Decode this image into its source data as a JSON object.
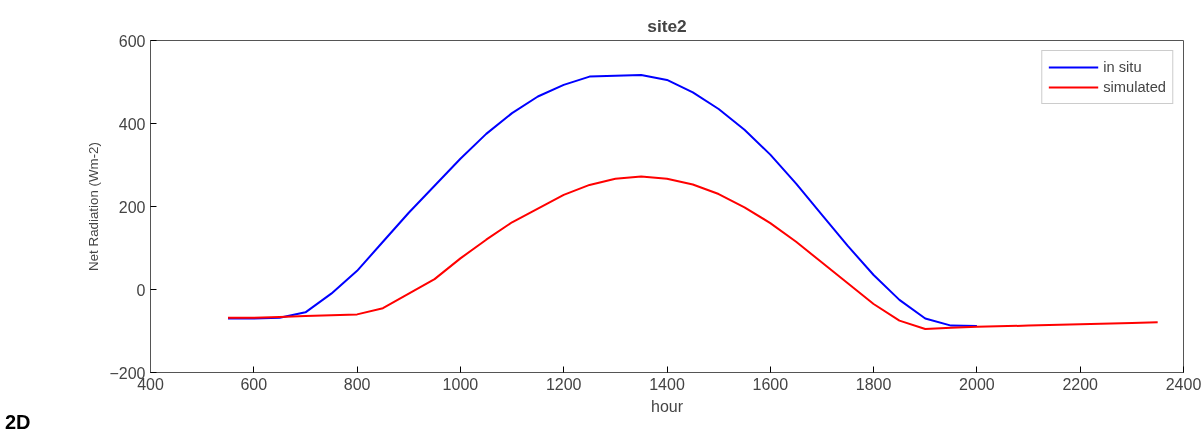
{
  "chart_data": {
    "type": "line",
    "title": "site2",
    "xlabel": "hour",
    "ylabel": "Net Radiation (Wm-2)",
    "x": [
      550,
      600,
      650,
      700,
      750,
      800,
      850,
      900,
      950,
      1000,
      1050,
      1100,
      1150,
      1200,
      1250,
      1300,
      1350,
      1400,
      1450,
      1500,
      1550,
      1600,
      1650,
      1700,
      1750,
      1800,
      1850,
      1900,
      1950,
      2000,
      2100,
      2200,
      2300,
      2350
    ],
    "series": [
      {
        "name": "in situ",
        "color": "#0000ff",
        "values": [
          -70,
          -70,
          -68,
          -55,
          -10,
          45,
          115,
          185,
          250,
          315,
          375,
          425,
          465,
          493,
          513,
          515,
          517,
          505,
          475,
          435,
          385,
          325,
          255,
          180,
          105,
          35,
          -25,
          -70,
          -87,
          -88,
          null,
          null,
          null,
          null
        ]
      },
      {
        "name": "simulated",
        "color": "#ff0000",
        "values": [
          -68,
          -68,
          -66,
          -64,
          -62,
          -60,
          -45,
          -10,
          25,
          75,
          120,
          162,
          195,
          228,
          252,
          267,
          272,
          267,
          253,
          230,
          198,
          160,
          115,
          65,
          15,
          -35,
          -75,
          -95,
          -92,
          -90,
          -87,
          -84,
          -81,
          -79
        ]
      }
    ],
    "xlim": [
      400,
      2400
    ],
    "xticks": [
      400,
      600,
      800,
      1000,
      1200,
      1400,
      1600,
      1800,
      2000,
      2200,
      2400
    ],
    "ylim": [
      -200,
      600
    ],
    "yticks": [
      -200,
      0,
      200,
      400,
      600
    ],
    "grid": false,
    "legend": "top right",
    "line_style": "solid",
    "marker": "none",
    "annotations": [
      "2D"
    ]
  }
}
